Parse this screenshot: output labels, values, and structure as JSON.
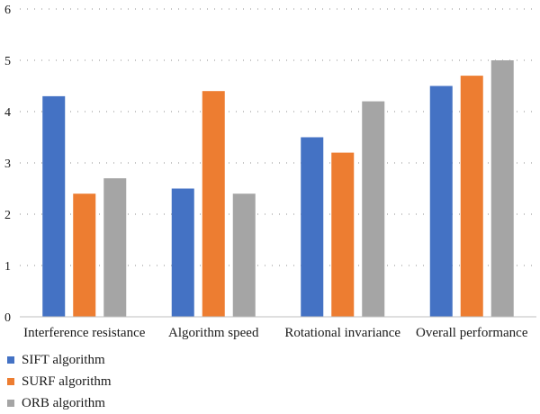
{
  "chart_data": {
    "type": "bar",
    "categories": [
      "Interference resistance",
      "Algorithm speed",
      "Rotational invariance",
      "Overall performance"
    ],
    "series": [
      {
        "name": "SIFT algorithm",
        "color": "#4472c4",
        "values": [
          4.3,
          2.5,
          3.5,
          4.5
        ]
      },
      {
        "name": "SURF algorithm",
        "color": "#ed7d31",
        "values": [
          2.4,
          4.4,
          3.2,
          4.7
        ]
      },
      {
        "name": "ORB algorithm",
        "color": "#a5a5a5",
        "values": [
          2.7,
          2.4,
          4.2,
          5.0
        ]
      }
    ],
    "yticks": [
      0,
      1,
      2,
      3,
      4,
      5,
      6
    ],
    "ylim": [
      0,
      6
    ],
    "grid": true,
    "legend_position": "bottom-left"
  }
}
